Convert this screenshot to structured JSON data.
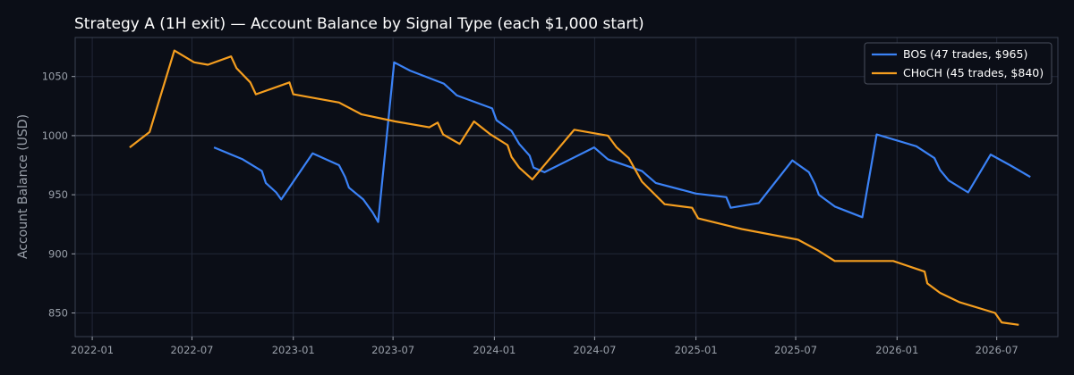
{
  "chart_data": {
    "type": "line",
    "title": "Strategy A (1H exit) — Account Balance by Signal Type (each $1,000 start)",
    "xlabel": "",
    "ylabel": "Account Balance (USD)",
    "xlim": [
      "2021-12-01",
      "2026-10-20"
    ],
    "ylim": [
      830,
      1083
    ],
    "x_ticks": [
      "2022-01",
      "2022-07",
      "2023-01",
      "2023-07",
      "2024-01",
      "2024-07",
      "2025-01",
      "2025-07",
      "2026-01",
      "2026-07"
    ],
    "y_ticks": [
      850,
      900,
      950,
      1000,
      1050
    ],
    "reference_line": 1000,
    "grid": true,
    "legend": "top-right",
    "colors": {
      "background": "#0b0e17",
      "grid": "#222838",
      "reference": "#4a4f5c"
    },
    "series": [
      {
        "name": "BOS (47 trades, $965)",
        "color": "#3b82f6",
        "points": [
          [
            "2022-08-10",
            990
          ],
          [
            "2022-10-01",
            980
          ],
          [
            "2022-11-05",
            970
          ],
          [
            "2022-11-12",
            960
          ],
          [
            "2022-12-01",
            952
          ],
          [
            "2022-12-10",
            946
          ],
          [
            "2023-02-05",
            985
          ],
          [
            "2023-03-25",
            975
          ],
          [
            "2023-04-05",
            965
          ],
          [
            "2023-04-12",
            956
          ],
          [
            "2023-05-08",
            946
          ],
          [
            "2023-05-25",
            935
          ],
          [
            "2023-06-04",
            927
          ],
          [
            "2023-07-03",
            1062
          ],
          [
            "2023-08-01",
            1055
          ],
          [
            "2023-10-01",
            1044
          ],
          [
            "2023-10-25",
            1034
          ],
          [
            "2023-12-28",
            1023
          ],
          [
            "2024-01-05",
            1013
          ],
          [
            "2024-02-01",
            1004
          ],
          [
            "2024-02-15",
            993
          ],
          [
            "2024-03-05",
            983
          ],
          [
            "2024-03-12",
            973
          ],
          [
            "2024-04-01",
            969
          ],
          [
            "2024-06-30",
            990
          ],
          [
            "2024-07-25",
            980
          ],
          [
            "2024-09-25",
            970
          ],
          [
            "2024-10-20",
            960
          ],
          [
            "2025-01-01",
            951
          ],
          [
            "2025-02-25",
            948
          ],
          [
            "2025-03-05",
            939
          ],
          [
            "2025-04-25",
            943
          ],
          [
            "2025-06-25",
            979
          ],
          [
            "2025-07-25",
            969
          ],
          [
            "2025-08-05",
            959
          ],
          [
            "2025-08-12",
            950
          ],
          [
            "2025-09-10",
            940
          ],
          [
            "2025-10-30",
            931
          ],
          [
            "2025-11-25",
            1001
          ],
          [
            "2026-02-05",
            991
          ],
          [
            "2026-03-10",
            981
          ],
          [
            "2026-03-20",
            971
          ],
          [
            "2026-04-05",
            962
          ],
          [
            "2026-05-10",
            952
          ],
          [
            "2026-06-20",
            984
          ],
          [
            "2026-07-25",
            975
          ],
          [
            "2026-08-31",
            965
          ]
        ]
      },
      {
        "name": "CHoCH (45 trades, $840)",
        "color": "#f59e1f",
        "points": [
          [
            "2022-03-10",
            990
          ],
          [
            "2022-04-15",
            1003
          ],
          [
            "2022-05-30",
            1072
          ],
          [
            "2022-07-05",
            1062
          ],
          [
            "2022-07-30",
            1060
          ],
          [
            "2022-09-10",
            1067
          ],
          [
            "2022-09-20",
            1057
          ],
          [
            "2022-10-15",
            1045
          ],
          [
            "2022-10-25",
            1035
          ],
          [
            "2022-12-25",
            1045
          ],
          [
            "2023-01-01",
            1035
          ],
          [
            "2023-03-25",
            1028
          ],
          [
            "2023-05-05",
            1018
          ],
          [
            "2023-07-05",
            1012
          ],
          [
            "2023-09-05",
            1007
          ],
          [
            "2023-09-20",
            1011
          ],
          [
            "2023-09-30",
            1001
          ],
          [
            "2023-10-30",
            993
          ],
          [
            "2023-11-25",
            1012
          ],
          [
            "2023-12-25",
            1001
          ],
          [
            "2024-01-25",
            992
          ],
          [
            "2024-02-01",
            982
          ],
          [
            "2024-02-15",
            973
          ],
          [
            "2024-03-10",
            963
          ],
          [
            "2024-05-25",
            1005
          ],
          [
            "2024-07-25",
            1000
          ],
          [
            "2024-08-10",
            990
          ],
          [
            "2024-09-01",
            981
          ],
          [
            "2024-09-25",
            961
          ],
          [
            "2024-11-05",
            942
          ],
          [
            "2024-12-25",
            939
          ],
          [
            "2025-01-05",
            930
          ],
          [
            "2025-03-25",
            921
          ],
          [
            "2025-07-05",
            912
          ],
          [
            "2025-08-10",
            903
          ],
          [
            "2025-09-10",
            894
          ],
          [
            "2025-12-25",
            894
          ],
          [
            "2026-02-20",
            885
          ],
          [
            "2026-02-25",
            875
          ],
          [
            "2026-03-20",
            867
          ],
          [
            "2026-04-25",
            859
          ],
          [
            "2026-06-28",
            850
          ],
          [
            "2026-07-10",
            842
          ],
          [
            "2026-08-10",
            840
          ]
        ]
      }
    ]
  }
}
